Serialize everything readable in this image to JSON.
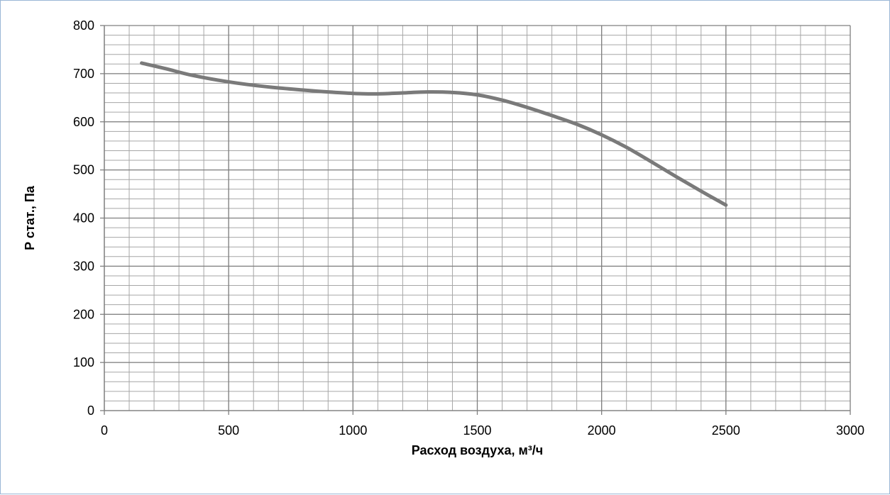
{
  "chart_data": {
    "type": "line",
    "title": "",
    "xlabel": "Расход воздуха, м³/ч",
    "ylabel": "P стат., Па",
    "xlim": [
      0,
      3000
    ],
    "ylim": [
      0,
      800
    ],
    "x_ticks": [
      0,
      500,
      1000,
      1500,
      2000,
      2500,
      3000
    ],
    "y_ticks": [
      0,
      100,
      200,
      300,
      400,
      500,
      600,
      700,
      800
    ],
    "x_minor_step": 100,
    "y_minor_step": 20,
    "grid": true,
    "legend": "none",
    "series": [
      {
        "color": "#7a7a7a",
        "x": [
          150,
          250,
          350,
          500,
          650,
          800,
          900,
          1000,
          1100,
          1200,
          1300,
          1400,
          1500,
          1600,
          1700,
          1800,
          1900,
          2000,
          2100,
          2200,
          2300,
          2400,
          2500
        ],
        "y": [
          722,
          710,
          697,
          683,
          673,
          666,
          662,
          659,
          658,
          660,
          662,
          661,
          656,
          645,
          630,
          613,
          595,
          573,
          547,
          517,
          486,
          456,
          427
        ]
      }
    ]
  }
}
